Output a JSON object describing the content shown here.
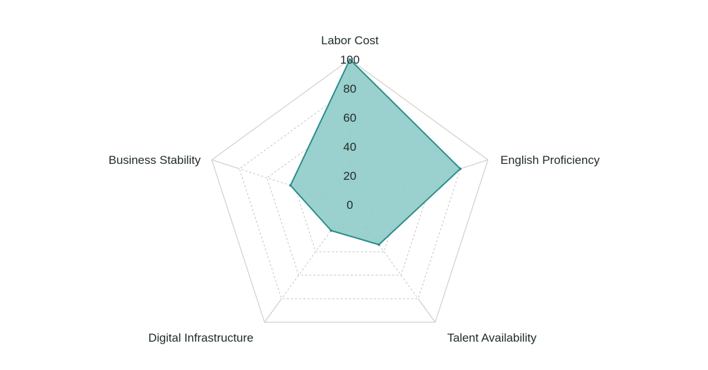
{
  "chart_data": {
    "type": "radar",
    "title": "",
    "axes": [
      "Labor Cost",
      "English Proficiency",
      "Talent Availability",
      "Digital Infrastructure",
      "Business Stability"
    ],
    "ticks": [
      "0",
      "20",
      "40",
      "60",
      "80",
      "100"
    ],
    "range": [
      0,
      100
    ],
    "series": [
      {
        "values": [
          100,
          80,
          34,
          22,
          43
        ],
        "color": "#2a8c8c"
      }
    ],
    "fill_color": "#8fcbc8",
    "grid": true,
    "legend": false
  }
}
